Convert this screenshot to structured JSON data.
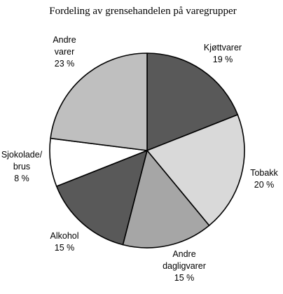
{
  "chart_data": {
    "type": "pie",
    "title": "Fordeling av grensehandelen på varegrupper",
    "start_angle_deg": 0,
    "direction": "clockwise",
    "slices": [
      {
        "label_lines": [
          "Kjøttvarer"
        ],
        "value": 19,
        "value_label": "19 %",
        "color": "#595959"
      },
      {
        "label_lines": [
          "Tobakk"
        ],
        "value": 20,
        "value_label": "20 %",
        "color": "#d9d9d9"
      },
      {
        "label_lines": [
          "Andre",
          "dagligvarer"
        ],
        "value": 15,
        "value_label": "15 %",
        "color": "#a6a6a6"
      },
      {
        "label_lines": [
          "Alkohol"
        ],
        "value": 15,
        "value_label": "15 %",
        "color": "#595959"
      },
      {
        "label_lines": [
          "Sjokolade/",
          "brus"
        ],
        "value": 8,
        "value_label": "8 %",
        "color": "#ffffff"
      },
      {
        "label_lines": [
          "Andre",
          "varer"
        ],
        "value": 23,
        "value_label": "23 %",
        "color": "#bfbfbf"
      }
    ]
  }
}
